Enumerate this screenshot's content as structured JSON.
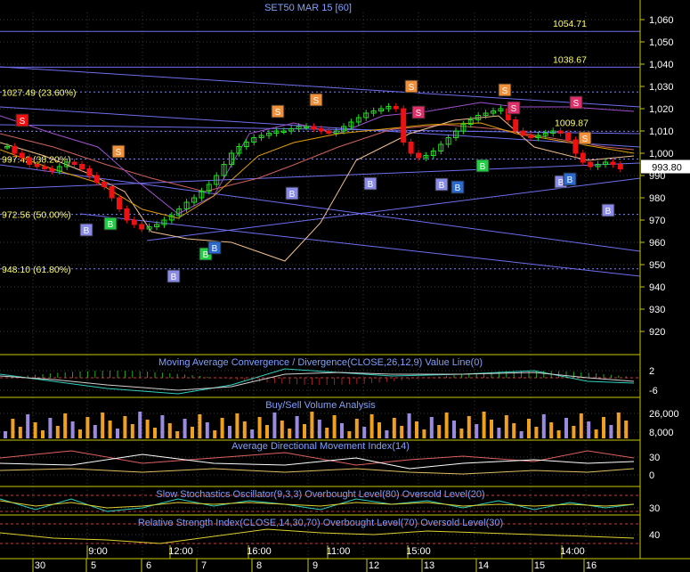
{
  "title": "SET50 MAR 15   [60]",
  "colors": {
    "bg": "#000000",
    "grid": "#3a3a3a",
    "up": "#22dd22",
    "down": "#ee1111",
    "frame": "#c9c900",
    "fib": "#ffff66",
    "channel": "#6e6ef0",
    "title": "#7fa0ff",
    "buy": "#8a8ae8",
    "sell": "#f0903a",
    "sell_pink": "#e0306a",
    "buy_green": "#22cc44",
    "buy_blue": "#2b6bd0"
  },
  "price_axis": {
    "ticks": [
      "1,060",
      "1,050",
      "1,040",
      "1,030",
      "1,020",
      "1,010",
      "1,000",
      "990",
      "980",
      "970",
      "960",
      "950",
      "940",
      "930",
      "920"
    ],
    "last_price": "993.80"
  },
  "levels": [
    {
      "label": "1054.71"
    },
    {
      "label": "1038.67"
    },
    {
      "label": "1027.49 (23.60%)"
    },
    {
      "label": "1009.87"
    },
    {
      "label": "997.42 (38.20%)"
    },
    {
      "label": "972.56 (50.00%)"
    },
    {
      "label": "948.10 (61.80%)"
    }
  ],
  "signals": {
    "sell_label": "S",
    "buy_label": "B"
  },
  "panels": {
    "macd": {
      "title": "Moving Average Convergence / Divergence(CLOSE,26,12,9) Value Line(0)",
      "ticks": [
        "2",
        "-6"
      ]
    },
    "volume": {
      "title": "Buy/Sell Volume Analysis",
      "ticks": [
        "26,000",
        "8,000"
      ]
    },
    "adx": {
      "title": "Average Directional Movement Index(14)",
      "ticks": [
        "30",
        "0"
      ]
    },
    "stoch": {
      "title": "Slow Stochastics Oscillator(9,3,3) Overbought Level(80) Oversold Level(20)",
      "ticks": [
        "30"
      ]
    },
    "rsi": {
      "title": "Relative Strength Index(CLOSE,14,30,70) Overbought Level(70) Oversold Level(30)",
      "ticks": [
        "40"
      ]
    }
  },
  "time_axis": {
    "top_labels": [
      "9:00",
      "12:00",
      "16:00",
      "11:00",
      "15:00",
      "14:00"
    ],
    "date_labels": [
      "30",
      "5",
      "6",
      "7",
      "8",
      "9",
      "12",
      "13",
      "14",
      "15",
      "16"
    ]
  }
}
